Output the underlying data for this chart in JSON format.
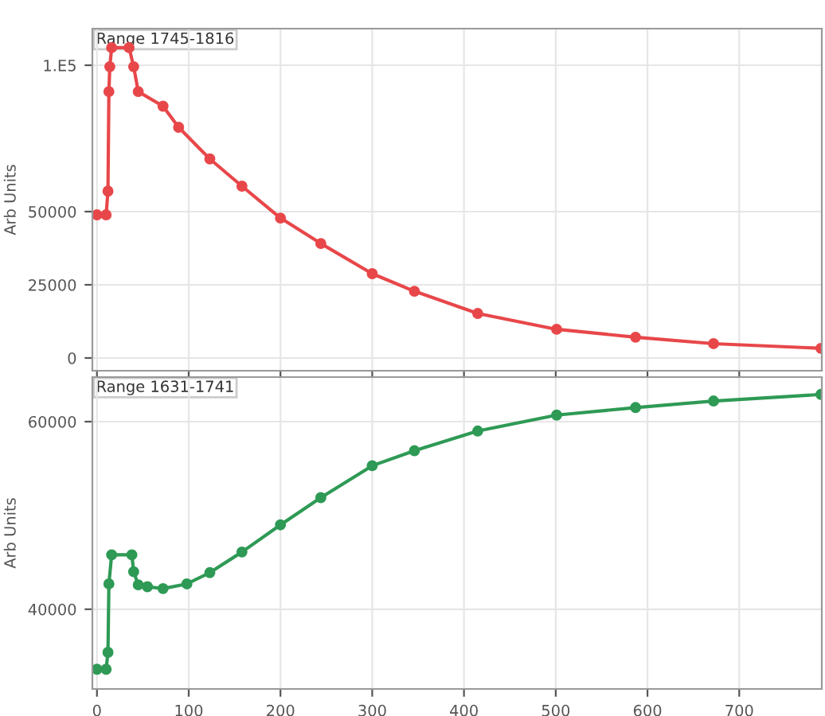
{
  "chart_data": [
    {
      "type": "line",
      "title": "Range 1745-1816",
      "ylabel": "Arb Units",
      "x": [
        0,
        10,
        12,
        13,
        14,
        16,
        35,
        40,
        45,
        72,
        89,
        123,
        158,
        200,
        244,
        300,
        346,
        415,
        501,
        587,
        672,
        789
      ],
      "series": [
        {
          "color": "#e8474a",
          "values": [
            48900,
            48900,
            57000,
            91000,
            99500,
            106000,
            106000,
            99500,
            91000,
            86000,
            78800,
            68000,
            58700,
            47800,
            39100,
            28800,
            22800,
            15200,
            9800,
            7100,
            4900,
            3300
          ]
        }
      ],
      "xlim": [
        -5,
        790
      ],
      "xticks": [
        0,
        100,
        200,
        300,
        400,
        500,
        600,
        700
      ],
      "ylim": [
        -4350,
        112500
      ],
      "yticks": [
        0,
        25000,
        50000,
        {
          "value": 100000,
          "label": "1.E5"
        }
      ],
      "grid": true,
      "marker": "circle",
      "tick_labels": "y"
    },
    {
      "type": "line",
      "title": "Range 1631-1741",
      "ylabel": "Arb Units",
      "x": [
        0,
        10,
        12,
        13,
        16,
        38,
        40,
        45,
        55,
        72,
        98,
        123,
        158,
        200,
        244,
        300,
        346,
        415,
        501,
        587,
        672,
        789
      ],
      "series": [
        {
          "color": "#2e9a55",
          "values": [
            33600,
            33600,
            35400,
            42700,
            45800,
            45800,
            44000,
            42600,
            42400,
            42200,
            42700,
            43900,
            46100,
            49000,
            51900,
            55300,
            56900,
            59000,
            60700,
            61500,
            62200,
            62900
          ]
        }
      ],
      "xlim": [
        -5,
        790
      ],
      "xticks": [
        0,
        100,
        200,
        300,
        400,
        500,
        600,
        700
      ],
      "ylim": [
        31500,
        64750
      ],
      "yticks": [
        40000,
        60000
      ],
      "grid": true,
      "marker": "circle"
    }
  ]
}
